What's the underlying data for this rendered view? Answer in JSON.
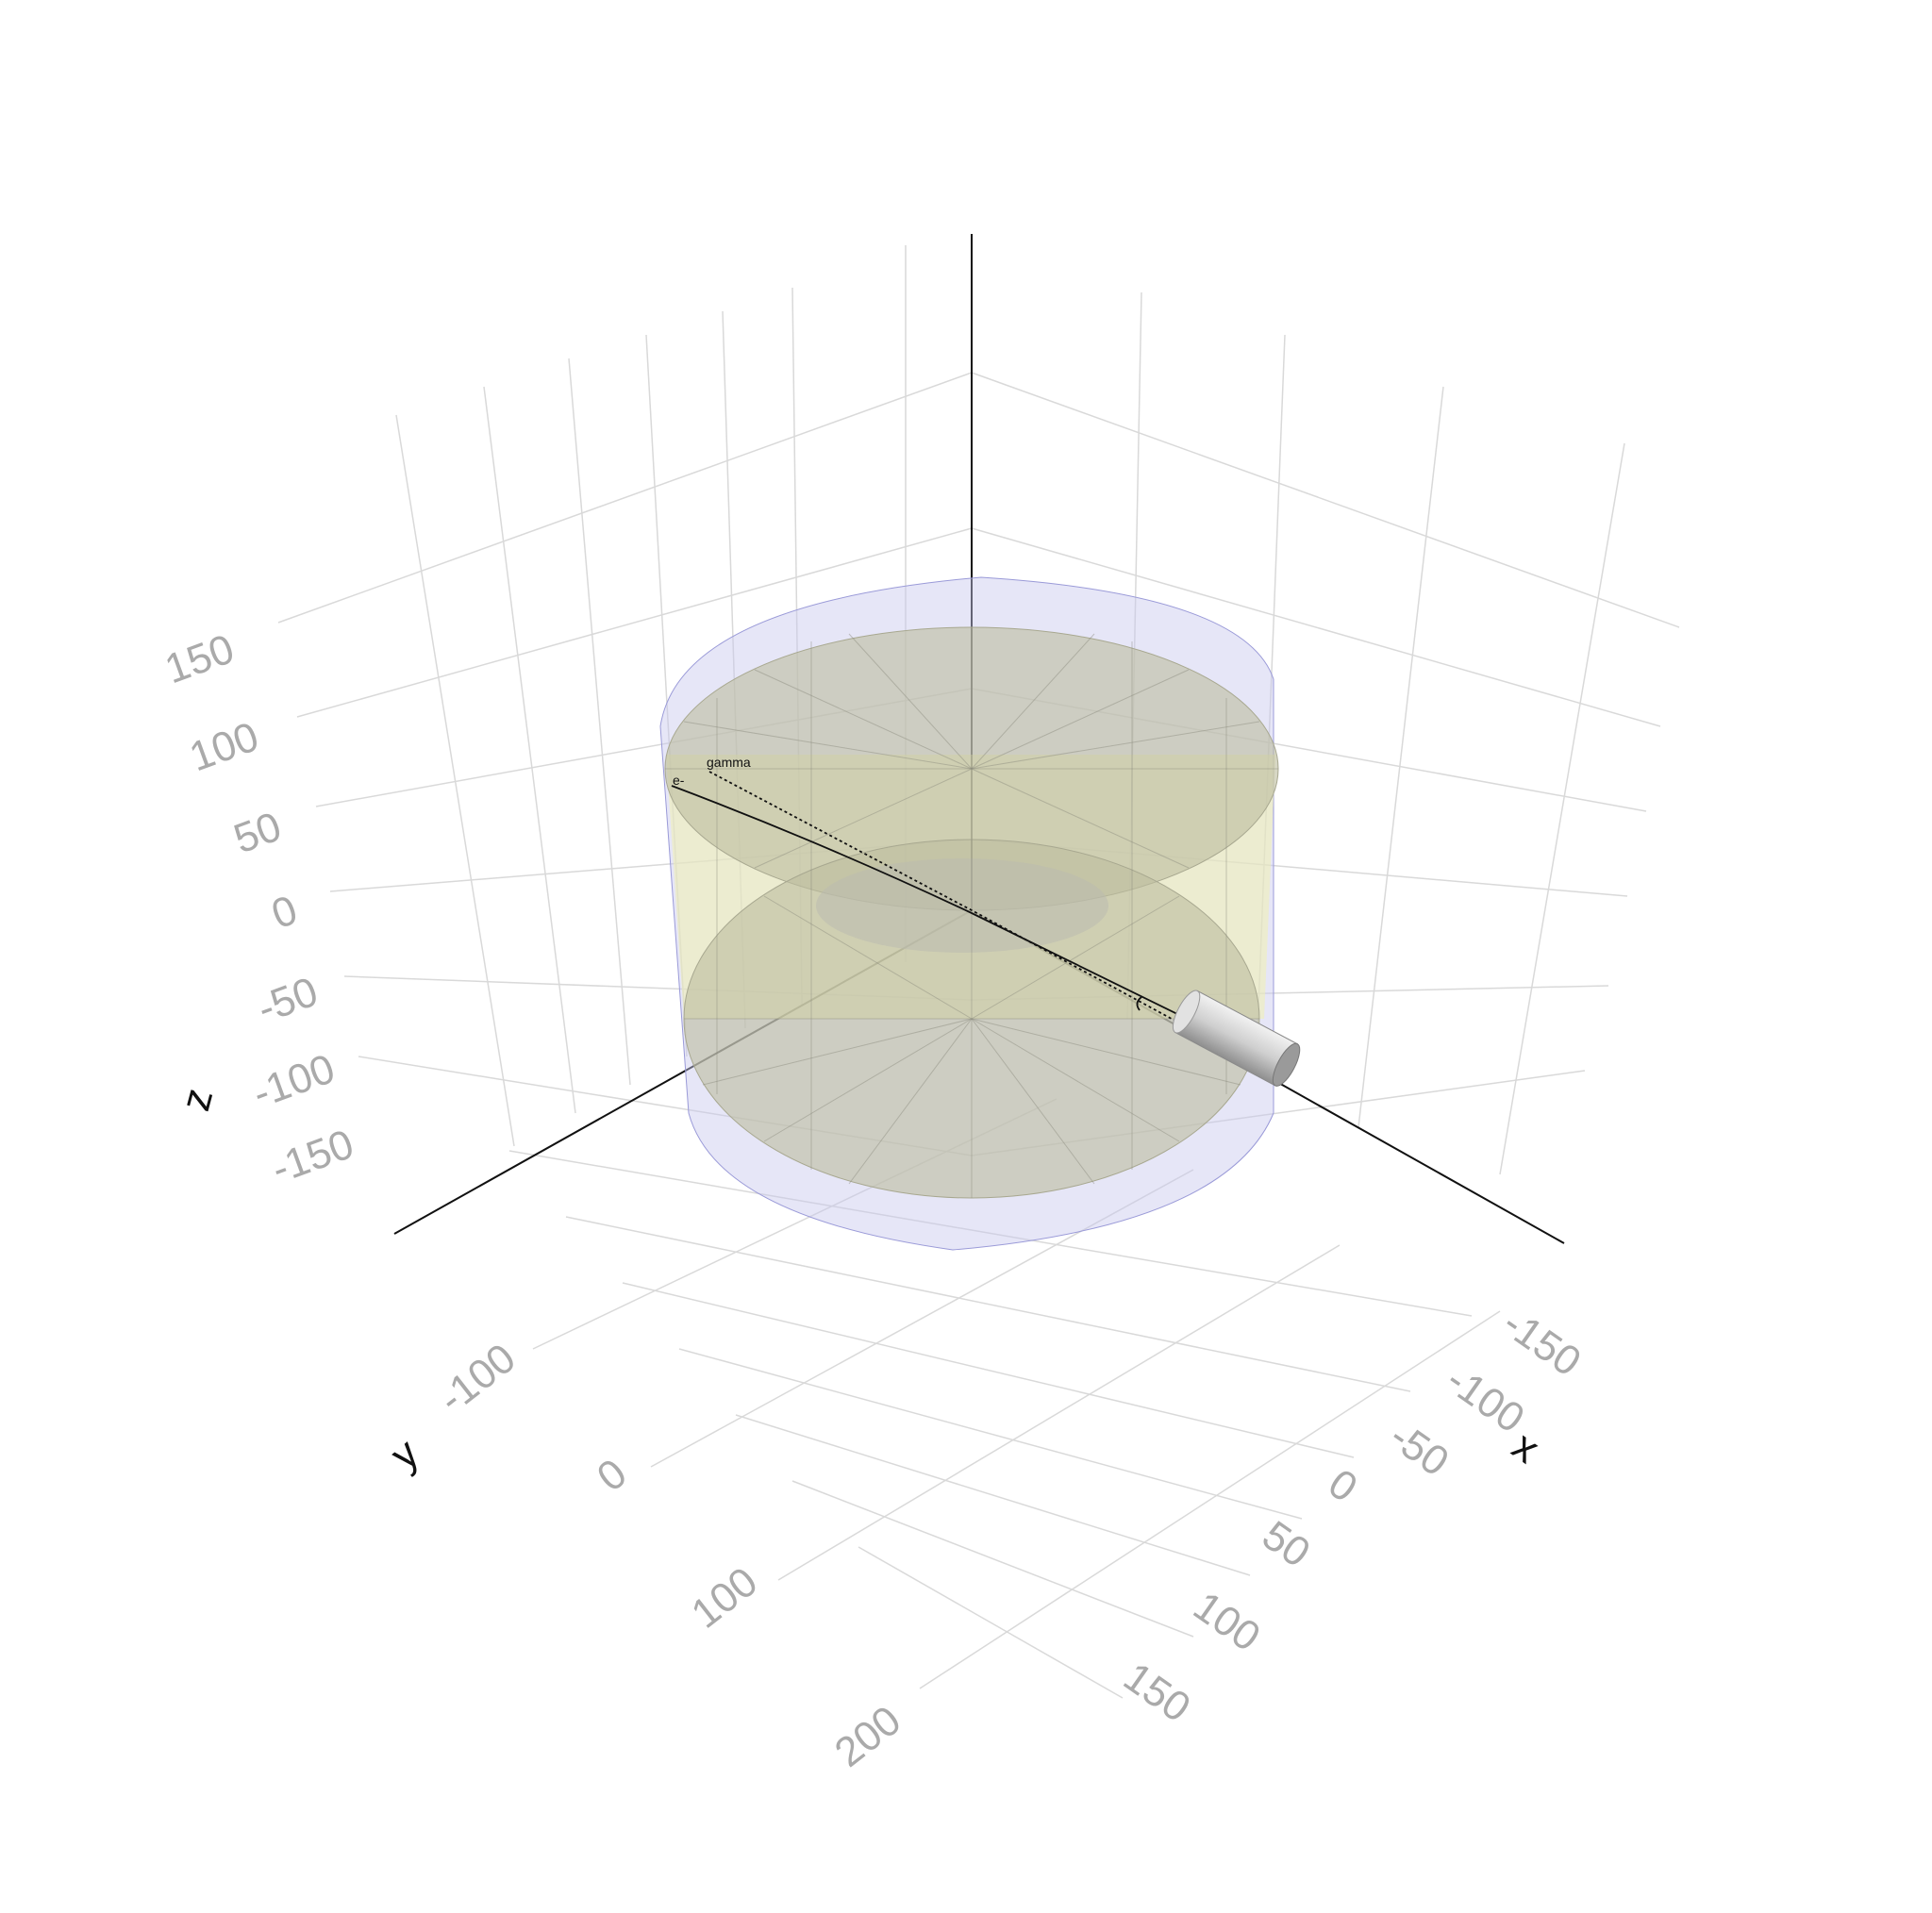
{
  "axes": {
    "x": {
      "title": "x",
      "ticks": [
        "-150",
        "-100",
        "-50",
        "0",
        "50",
        "100",
        "150"
      ]
    },
    "y": {
      "title": "y",
      "ticks": [
        "-100",
        "0",
        "100",
        "200"
      ]
    },
    "z": {
      "title": "z",
      "ticks": [
        "150",
        "100",
        "50",
        "0",
        "-50",
        "-100",
        "-150"
      ]
    }
  },
  "tracks": [
    {
      "label": "gamma",
      "style": "dotted"
    },
    {
      "label": "e-",
      "style": "solid"
    }
  ],
  "colors": {
    "outer_volume": "#c8c8ee",
    "inner_volume": "#bcbc9e",
    "side_yellow": "#f1f1b0",
    "grid": "#d9d9d9",
    "axis_line": "#111111",
    "tick_text": "#aaaaaa"
  },
  "objects": [
    "outer-cylinder-volume",
    "inner-cylinder-volume",
    "beam-pipe-cylinder"
  ]
}
